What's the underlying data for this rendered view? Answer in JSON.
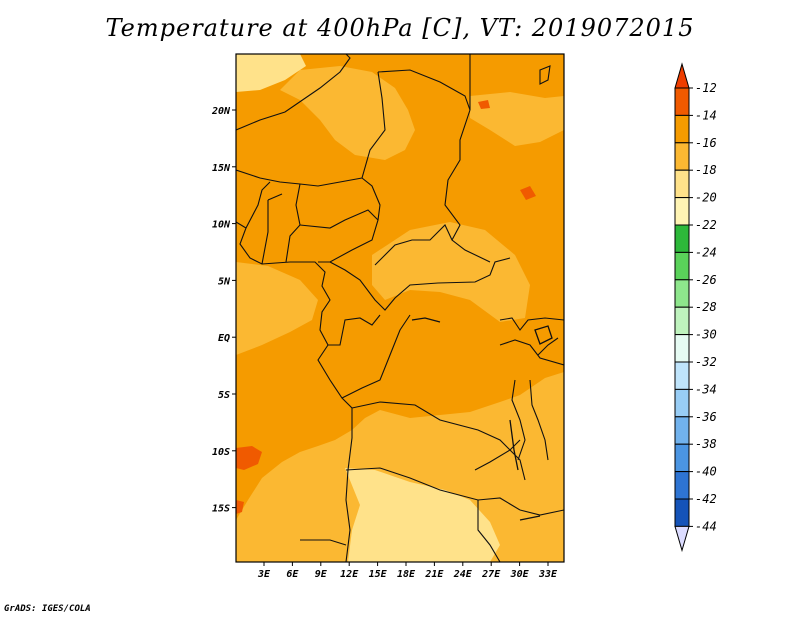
{
  "title": "Temperature at 400hPa [C], VT: 2019072015",
  "footer": "GrADS: IGES/COLA",
  "map": {
    "lat_ticks": [
      "20N",
      "15N",
      "10N",
      "5N",
      "EQ",
      "5S",
      "10S",
      "15S"
    ],
    "lon_ticks": [
      "3E",
      "6E",
      "9E",
      "12E",
      "15E",
      "18E",
      "21E",
      "24E",
      "27E",
      "30E",
      "33E"
    ]
  },
  "colorbar": {
    "labels": [
      "-12",
      "-14",
      "-16",
      "-18",
      "-20",
      "-22",
      "-24",
      "-26",
      "-28",
      "-30",
      "-32",
      "-34",
      "-36",
      "-38",
      "-40",
      "-42",
      "-44"
    ],
    "colors": [
      "#f05a00",
      "#f59b00",
      "#fbb832",
      "#ffe28a",
      "#fff4b4",
      "#2db83a",
      "#5ad25a",
      "#8ee68c",
      "#bff3be",
      "#e6fbf3",
      "#bfe4fb",
      "#98cdf5",
      "#71b2ed",
      "#4b95e2",
      "#2e74d3",
      "#1553b8",
      "#0a2c8a"
    ],
    "over_color": "#ee3d00",
    "under_color": "#dcdcff"
  }
}
